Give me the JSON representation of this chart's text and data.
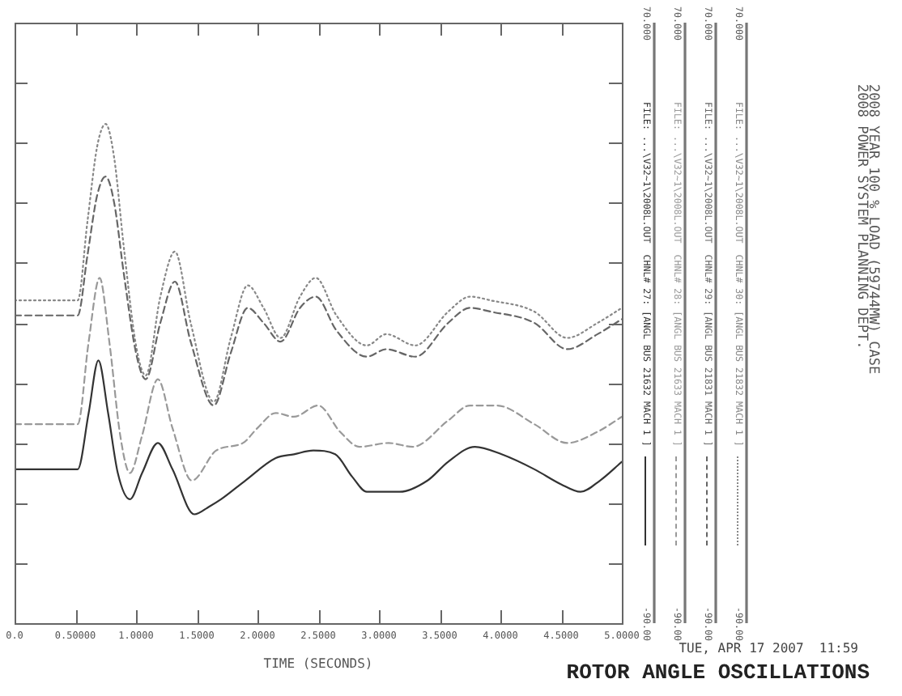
{
  "chart_data": {
    "type": "line",
    "title": "ROTOR ANGLE OSCILLATIONS",
    "xlabel": "TIME (SECONDS)",
    "annotations": [
      "TUE, APR 17 2007  11:59",
      "2008 YEAR 100 % LOAD (59744MW) CASE",
      "2008 POWER SYSTEM PLANNING DEPT."
    ],
    "legend": "right",
    "xlim": [
      0,
      5
    ],
    "xticks": [
      {
        "value": 0,
        "label": "0.0"
      },
      {
        "value": 0.5,
        "label": "0.50000"
      },
      {
        "value": 1,
        "label": "1.0000"
      },
      {
        "value": 1.5,
        "label": "1.5000"
      },
      {
        "value": 2,
        "label": "2.0000"
      },
      {
        "value": 2.5,
        "label": "2.5000"
      },
      {
        "value": 3,
        "label": "3.0000"
      },
      {
        "value": 3.5,
        "label": "3.5000"
      },
      {
        "value": 4,
        "label": "4.0000"
      },
      {
        "value": 4.5,
        "label": "4.5000"
      },
      {
        "value": 5,
        "label": "5.0000"
      }
    ],
    "ylim": [
      -90,
      70
    ],
    "yticks": [
      {
        "value": 70,
        "label": "70.000"
      },
      {
        "value": 54,
        "label": null
      },
      {
        "value": 38,
        "label": null
      },
      {
        "value": 22,
        "label": null
      },
      {
        "value": 6,
        "label": null
      },
      {
        "value": -10,
        "label": null
      },
      {
        "value": -26,
        "label": null
      },
      {
        "value": -42,
        "label": null
      },
      {
        "value": -58,
        "label": null
      },
      {
        "value": -74,
        "label": null
      },
      {
        "value": -90,
        "label": "-90.00"
      }
    ],
    "series": [
      {
        "name": "FILE: ...\\V32~1\\2008L.OUT  CHNL# 27: [ANGL BUS 21632 MACH 1 ]",
        "color": "#333333",
        "line_style": "solid",
        "x": [
          0,
          0.52,
          0.61,
          0.69,
          0.77,
          0.85,
          0.95,
          1.05,
          1.18,
          1.3,
          1.48,
          1.6,
          1.7,
          1.9,
          2.15,
          2.3,
          2.46,
          2.64,
          2.78,
          2.9,
          3.05,
          3.17,
          3.4,
          3.57,
          3.79,
          4.01,
          4.28,
          4.5,
          4.66,
          4.82,
          5
        ],
        "values": [
          -49,
          -49,
          -34,
          -20,
          -34,
          -50,
          -57,
          -50,
          -42,
          -49,
          -61,
          -59,
          -57,
          -52,
          -46,
          -45,
          -44,
          -45,
          -51,
          -55,
          -55,
          -55,
          -52,
          -47,
          -43,
          -45,
          -49,
          -53,
          -55,
          -52,
          -47
        ]
      },
      {
        "name": "FILE: ...\\V32~1\\2008L.OUT  CHNL# 28: [ANGL BUS 21633 MACH 1 ]",
        "color": "#999999",
        "line_style": "dashed",
        "x": [
          0,
          0.52,
          0.61,
          0.7,
          0.78,
          0.87,
          0.95,
          1.05,
          1.18,
          1.3,
          1.46,
          1.66,
          1.88,
          2,
          2.15,
          2.3,
          2.5,
          2.68,
          2.84,
          3.08,
          3.28,
          3.57,
          3.75,
          3.97,
          4.28,
          4.55,
          4.8,
          5
        ],
        "values": [
          -37,
          -37,
          -15,
          2,
          -15,
          -40,
          -50,
          -40,
          -25,
          -38,
          -52,
          -44,
          -42,
          -38,
          -34,
          -35,
          -32,
          -39,
          -43,
          -42,
          -43,
          -36,
          -32,
          -32,
          -37,
          -42,
          -39,
          -35
        ]
      },
      {
        "name": "FILE: ...\\V32~1\\2008L.OUT  CHNL# 29: [ANGL BUS 21831 MACH 1 ]",
        "color": "#666666",
        "line_style": "dashed",
        "x": [
          0,
          0.52,
          0.6,
          0.68,
          0.75,
          0.82,
          0.9,
          1,
          1.08,
          1.2,
          1.32,
          1.45,
          1.64,
          1.78,
          1.92,
          2.05,
          2.19,
          2.35,
          2.48,
          2.65,
          2.9,
          3.06,
          3.3,
          3.57,
          3.75,
          3.92,
          4.28,
          4.55,
          4.8,
          5
        ],
        "values": [
          -8,
          -8,
          8,
          24,
          29,
          22,
          3,
          -18,
          -25,
          -10,
          1,
          -15,
          -32,
          -18,
          -6,
          -10,
          -15,
          -6,
          -3,
          -12,
          -19,
          -17,
          -19,
          -10,
          -6,
          -7,
          -10,
          -17,
          -13,
          -9
        ]
      },
      {
        "name": "FILE: ...\\V32~1\\2008L.OUT  CHNL# 30: [ANGL BUS 21832 MACH 1 ]",
        "color": "#888888",
        "line_style": "dotted",
        "x": [
          0,
          0.52,
          0.6,
          0.68,
          0.75,
          0.82,
          0.9,
          1,
          1.08,
          1.2,
          1.32,
          1.45,
          1.64,
          1.78,
          1.92,
          2.05,
          2.19,
          2.35,
          2.48,
          2.65,
          2.9,
          3.06,
          3.3,
          3.57,
          3.75,
          3.92,
          4.28,
          4.55,
          4.8,
          5
        ],
        "values": [
          -4,
          -4,
          17,
          37,
          43,
          34,
          10,
          -16,
          -24,
          -3,
          9,
          -10,
          -31,
          -14,
          0,
          -6,
          -14,
          -3,
          2,
          -8,
          -16,
          -13,
          -16,
          -7,
          -3,
          -4,
          -7,
          -14,
          -10,
          -6
        ]
      }
    ]
  }
}
